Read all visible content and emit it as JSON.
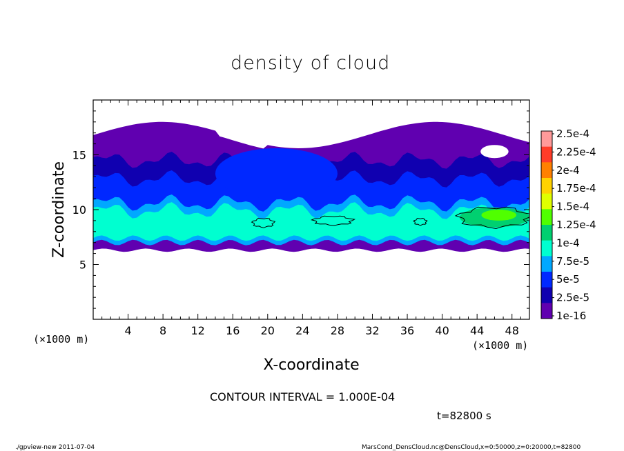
{
  "chart_data": {
    "type": "heatmap",
    "title": "density of cloud",
    "xlabel": "X-coordinate",
    "ylabel": "Z-coordinate",
    "x_unit": "(×1000 m)",
    "y_unit": "(×1000 m)",
    "xlim": [
      0,
      50
    ],
    "ylim": [
      0,
      20
    ],
    "x_ticks": [
      "4",
      "8",
      "12",
      "16",
      "20",
      "24",
      "28",
      "32",
      "36",
      "40",
      "44",
      "48"
    ],
    "x_tick_values": [
      4,
      8,
      12,
      16,
      20,
      24,
      28,
      32,
      36,
      40,
      44,
      48
    ],
    "y_ticks": [
      "5",
      "10",
      "15"
    ],
    "y_tick_values": [
      5,
      10,
      15
    ],
    "colorbar": {
      "labels": [
        "2.5e-4",
        "2.25e-4",
        "2e-4",
        "1.75e-4",
        "1.5e-4",
        "1.25e-4",
        "1e-4",
        "7.5e-5",
        "5e-5",
        "2.5e-5",
        "1e-16"
      ],
      "colors": [
        "#ff9a9a",
        "#ff3c28",
        "#ff8000",
        "#ffd200",
        "#e0ff00",
        "#50ff00",
        "#00d070",
        "#00ffd0",
        "#00a8ff",
        "#0028ff",
        "#1000b0",
        "#6000b0"
      ]
    },
    "contour_level": 0.0001,
    "cloud_extent": {
      "z_base_km_approx": 6.3,
      "z_top_km_approx": 18.7,
      "max_density_x_km": 46,
      "max_density_z_km": 9.5
    }
  },
  "contour_interval_text": "CONTOUR INTERVAL = 1.000E-04",
  "time_text": "t=82800  s",
  "footer": {
    "left": "./gpview-new  2011-07-04",
    "right": "MarsCond_DensCloud.nc@DensCloud,x=0:50000,z=0:20000,t=82800"
  }
}
